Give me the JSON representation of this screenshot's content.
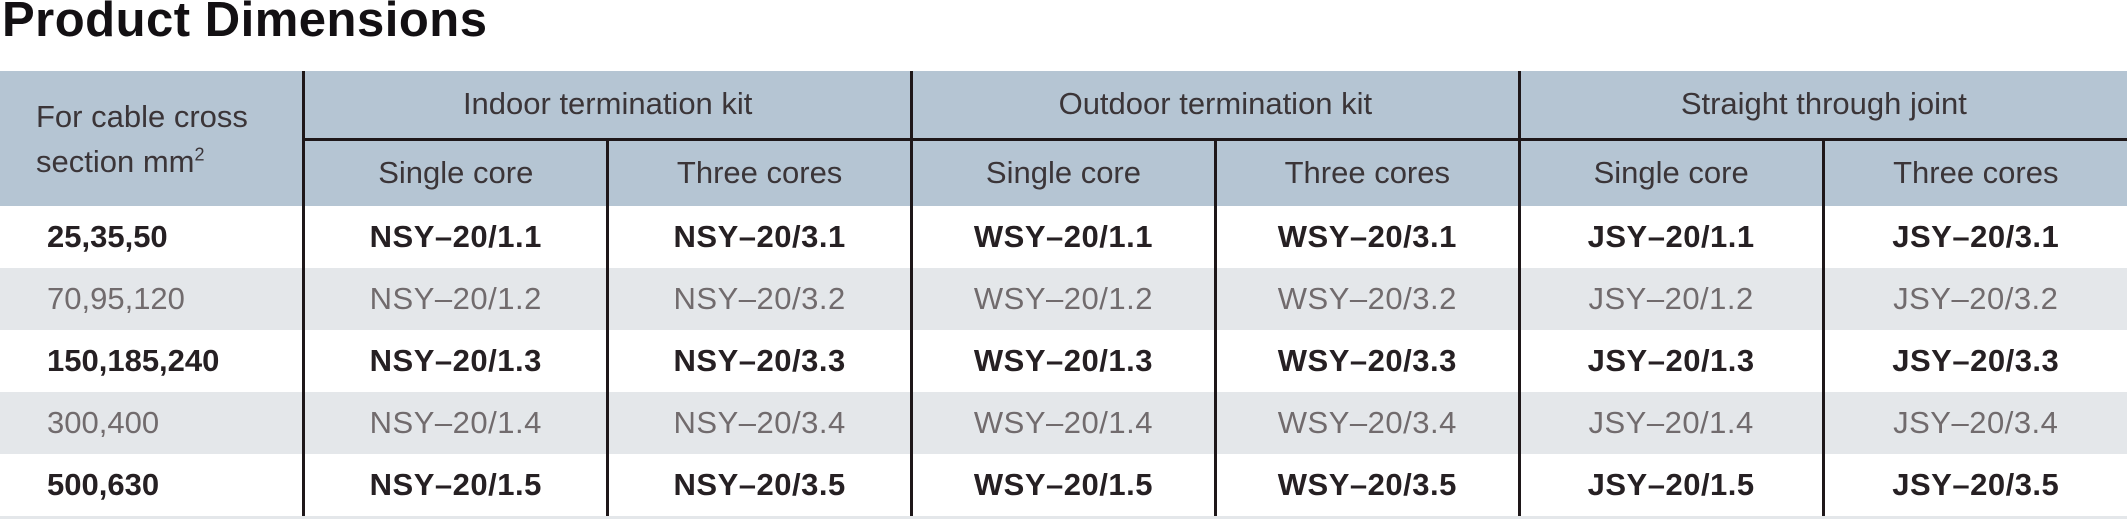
{
  "page": {
    "title": "Product Dimensions"
  },
  "colors": {
    "header_bg": "#b5c5d3",
    "alt_row_bg": "#e4e7ea",
    "border": "#1e1719",
    "bold_row_text": "#262023",
    "shade_row_text": "#716b6d"
  },
  "table": {
    "corner_header": {
      "line1": "For cable cross",
      "line2": "section mm",
      "sup": "2"
    },
    "groups": [
      {
        "label": "Indoor termination kit"
      },
      {
        "label": "Outdoor termination kit"
      },
      {
        "label": "Straight through joint"
      }
    ],
    "sub_headers": [
      "Single core",
      "Three cores",
      "Single core",
      "Three cores",
      "Single core",
      "Three cores"
    ],
    "rows": [
      {
        "section": "25,35,50",
        "cells": [
          "NSY–20/1.1",
          "NSY–20/3.1",
          "WSY–20/1.1",
          "WSY–20/3.1",
          "JSY–20/1.1",
          "JSY–20/3.1"
        ]
      },
      {
        "section": "70,95,120",
        "cells": [
          "NSY–20/1.2",
          "NSY–20/3.2",
          "WSY–20/1.2",
          "WSY–20/3.2",
          "JSY–20/1.2",
          "JSY–20/3.2"
        ]
      },
      {
        "section": "150,185,240",
        "cells": [
          "NSY–20/1.3",
          "NSY–20/3.3",
          "WSY–20/1.3",
          "WSY–20/3.3",
          "JSY–20/1.3",
          "JSY–20/3.3"
        ]
      },
      {
        "section": "300,400",
        "cells": [
          "NSY–20/1.4",
          "NSY–20/3.4",
          "WSY–20/1.4",
          "WSY–20/3.4",
          "JSY–20/1.4",
          "JSY–20/3.4"
        ]
      },
      {
        "section": "500,630",
        "cells": [
          "NSY–20/1.5",
          "NSY–20/3.5",
          "WSY–20/1.5",
          "WSY–20/3.5",
          "JSY–20/1.5",
          "JSY–20/3.5"
        ]
      }
    ]
  }
}
